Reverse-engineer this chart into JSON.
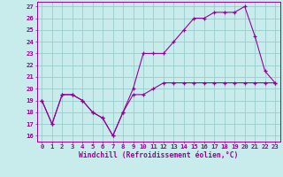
{
  "xlabel": "Windchill (Refroidissement éolien,°C)",
  "x_hours": [
    0,
    1,
    2,
    3,
    4,
    5,
    6,
    7,
    8,
    9,
    10,
    11,
    12,
    13,
    14,
    15,
    16,
    17,
    18,
    19,
    20,
    21,
    22,
    23
  ],
  "line1": [
    19,
    17,
    19.5,
    19.5,
    19,
    18,
    17.5,
    16,
    18,
    20,
    23,
    23,
    23,
    24,
    25,
    26,
    26,
    26.5,
    26.5,
    26.5,
    27,
    24.5,
    21.5,
    20.5
  ],
  "line2": [
    19,
    17,
    19.5,
    19.5,
    19,
    18,
    17.5,
    16,
    18,
    19.5,
    19.5,
    20,
    20.5,
    20.5,
    20.5,
    20.5,
    20.5,
    20.5,
    20.5,
    20.5,
    20.5,
    20.5,
    20.5,
    20.5
  ],
  "bg_color": "#c8ecec",
  "line_color": "#990099",
  "grid_color": "#99cccc",
  "ylim_min": 15.5,
  "ylim_max": 27.4,
  "yticks": [
    16,
    17,
    18,
    19,
    20,
    21,
    22,
    23,
    24,
    25,
    26,
    27
  ],
  "tick_fontsize": 5.2,
  "xlabel_fontsize": 5.8
}
